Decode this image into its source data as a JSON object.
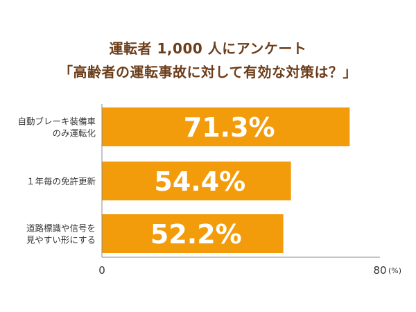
{
  "chart_data": {
    "type": "bar",
    "orientation": "horizontal",
    "title_lines": [
      "運転者 1,000 人にアンケート",
      "「高齢者の運転事故に対して有効な対策は？」"
    ],
    "categories": [
      [
        "自動ブレーキ装備車",
        "のみ運転化"
      ],
      [
        "１年毎の免許更新"
      ],
      [
        "道路標識や信号を",
        "見やすい形にする"
      ]
    ],
    "values": [
      71.3,
      54.4,
      52.2
    ],
    "value_labels": [
      "71.3%",
      "54.4%",
      "52.2%"
    ],
    "xlim": [
      0,
      80
    ],
    "x_ticks": [
      "0",
      "80"
    ],
    "unit": "(%)",
    "grid": false,
    "bar_color": "#f39c0b",
    "axis_color": "#888888"
  }
}
